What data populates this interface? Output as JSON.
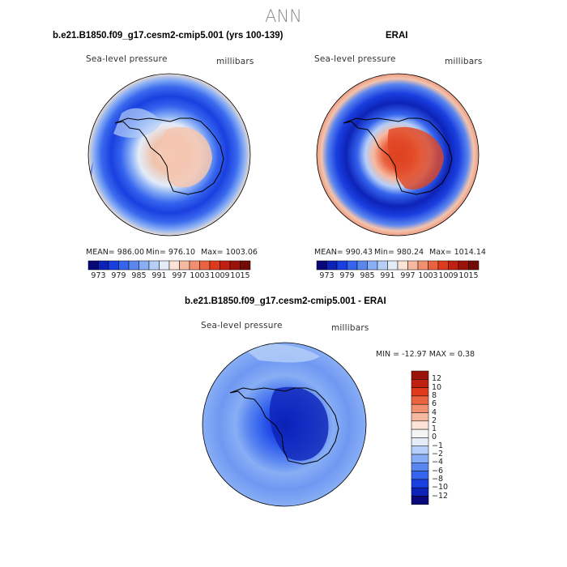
{
  "title": "ANN",
  "panels": [
    {
      "title": "b.e21.B1850.f09_g17.cesm2-cmip5.001 (yrs 100-139)",
      "variable": "Sea-level pressure",
      "units": "millibars",
      "stats": {
        "mean": "MEAN= 986.00",
        "min": "Min= 976.10",
        "max": "Max= 1003.06"
      }
    },
    {
      "title": "ERAI",
      "variable": "Sea-level pressure",
      "units": "millibars",
      "stats": {
        "mean": "MEAN= 990.43",
        "min": "Min= 980.24",
        "max": "Max= 1014.14"
      }
    },
    {
      "title": "b.e21.B1850.f09_g17.cesm2-cmip5.001 - ERAI",
      "variable": "Sea-level pressure",
      "units": "millibars",
      "stats": {
        "minmax": "MIN = -12.97 MAX =   0.38"
      }
    }
  ],
  "top_colorbar": {
    "labels": [
      "973",
      "979",
      "985",
      "991",
      "997",
      "1003",
      "1009",
      "1015"
    ],
    "colors": [
      "#08087a",
      "#0d23b8",
      "#1a3fe0",
      "#3564ee",
      "#5a86f0",
      "#88aef5",
      "#b6cff8",
      "#e4ecf8",
      "#fbe3d6",
      "#f5b9a0",
      "#f09070",
      "#eb6240",
      "#e03a1c",
      "#c02010",
      "#9a1208",
      "#730a04"
    ]
  },
  "diff_colorbar": {
    "labels": [
      "12",
      "10",
      "8",
      "6",
      "4",
      "2",
      "1",
      "0",
      "−1",
      "−2",
      "−4",
      "−6",
      "−8",
      "−10",
      "−12"
    ],
    "colors": [
      "#9a1208",
      "#c02010",
      "#e03a1c",
      "#eb6240",
      "#f09070",
      "#f5b9a0",
      "#fbe3d6",
      "#f4f4f4",
      "#e4ecf8",
      "#b6cff8",
      "#88aef5",
      "#5a86f0",
      "#3564ee",
      "#1a3fe0",
      "#0d23b8",
      "#08087a"
    ]
  }
}
